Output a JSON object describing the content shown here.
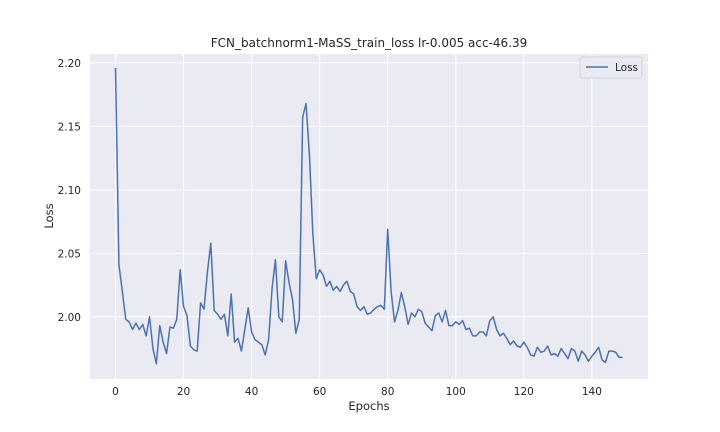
{
  "chart_data": {
    "type": "line",
    "title": "FCN_batchnorm1-MaSS_train_loss lr-0.005 acc-46.39",
    "xlabel": "Epochs",
    "ylabel": "Loss",
    "xlim": [
      -7.5,
      156.5
    ],
    "ylim": [
      1.951,
      2.207
    ],
    "xticks": [
      0,
      20,
      40,
      60,
      80,
      100,
      120,
      140
    ],
    "yticks": [
      2.0,
      2.05,
      2.1,
      2.15,
      2.2
    ],
    "ytick_labels": [
      "2.00",
      "2.05",
      "2.10",
      "2.15",
      "2.20"
    ],
    "grid": true,
    "legend_position": "top-right",
    "colors": {
      "background": "#eaeaf2",
      "grid": "#ffffff",
      "line": "#4c72b0"
    },
    "series": [
      {
        "name": "Loss",
        "x": [
          0,
          1,
          2,
          3,
          4,
          5,
          6,
          7,
          8,
          9,
          10,
          11,
          12,
          13,
          14,
          15,
          16,
          17,
          18,
          19,
          20,
          21,
          22,
          23,
          24,
          25,
          26,
          27,
          28,
          29,
          30,
          31,
          32,
          33,
          34,
          35,
          36,
          37,
          38,
          39,
          40,
          41,
          42,
          43,
          44,
          45,
          46,
          47,
          48,
          49,
          50,
          51,
          52,
          53,
          54,
          55,
          56,
          57,
          58,
          59,
          60,
          61,
          62,
          63,
          64,
          65,
          66,
          67,
          68,
          69,
          70,
          71,
          72,
          73,
          74,
          75,
          76,
          77,
          78,
          79,
          80,
          81,
          82,
          83,
          84,
          85,
          86,
          87,
          88,
          89,
          90,
          91,
          92,
          93,
          94,
          95,
          96,
          97,
          98,
          99,
          100,
          101,
          102,
          103,
          104,
          105,
          106,
          107,
          108,
          109,
          110,
          111,
          112,
          113,
          114,
          115,
          116,
          117,
          118,
          119,
          120,
          121,
          122,
          123,
          124,
          125,
          126,
          127,
          128,
          129,
          130,
          131,
          132,
          133,
          134,
          135,
          136,
          137,
          138,
          139,
          140,
          141,
          142,
          143,
          144,
          145,
          146,
          147,
          148,
          149
        ],
        "y": [
          2.196,
          2.041,
          2.02,
          1.998,
          1.996,
          1.99,
          1.995,
          1.99,
          1.994,
          1.985,
          2.0,
          1.975,
          1.963,
          1.993,
          1.98,
          1.971,
          1.992,
          1.991,
          1.998,
          2.037,
          2.008,
          2.001,
          1.977,
          1.974,
          1.973,
          2.011,
          2.006,
          2.035,
          2.058,
          2.005,
          2.002,
          1.998,
          2.002,
          1.985,
          2.018,
          1.98,
          1.983,
          1.973,
          1.99,
          2.007,
          1.988,
          1.982,
          1.98,
          1.978,
          1.97,
          1.982,
          2.022,
          2.045,
          2.0,
          1.996,
          2.044,
          2.027,
          2.014,
          1.987,
          1.998,
          2.157,
          2.168,
          2.127,
          2.065,
          2.03,
          2.037,
          2.033,
          2.024,
          2.028,
          2.021,
          2.024,
          2.02,
          2.025,
          2.028,
          2.02,
          2.018,
          2.008,
          2.005,
          2.008,
          2.002,
          2.003,
          2.006,
          2.008,
          2.009,
          2.006,
          2.069,
          2.02,
          1.996,
          2.005,
          2.019,
          2.008,
          1.994,
          2.003,
          2.0,
          2.006,
          2.004,
          1.995,
          1.992,
          1.989,
          2.001,
          2.003,
          1.996,
          2.005,
          1.993,
          1.993,
          1.996,
          1.994,
          1.997,
          1.99,
          1.991,
          1.985,
          1.985,
          1.988,
          1.988,
          1.985,
          1.997,
          2.0,
          1.99,
          1.985,
          1.987,
          1.983,
          1.978,
          1.981,
          1.977,
          1.976,
          1.98,
          1.976,
          1.97,
          1.969,
          1.976,
          1.972,
          1.973,
          1.977,
          1.97,
          1.971,
          1.969,
          1.975,
          1.971,
          1.967,
          1.975,
          1.973,
          1.965,
          1.973,
          1.97,
          1.965,
          1.969,
          1.972,
          1.976,
          1.966,
          1.964,
          1.973,
          1.973,
          1.972,
          1.968,
          1.968
        ]
      }
    ]
  }
}
